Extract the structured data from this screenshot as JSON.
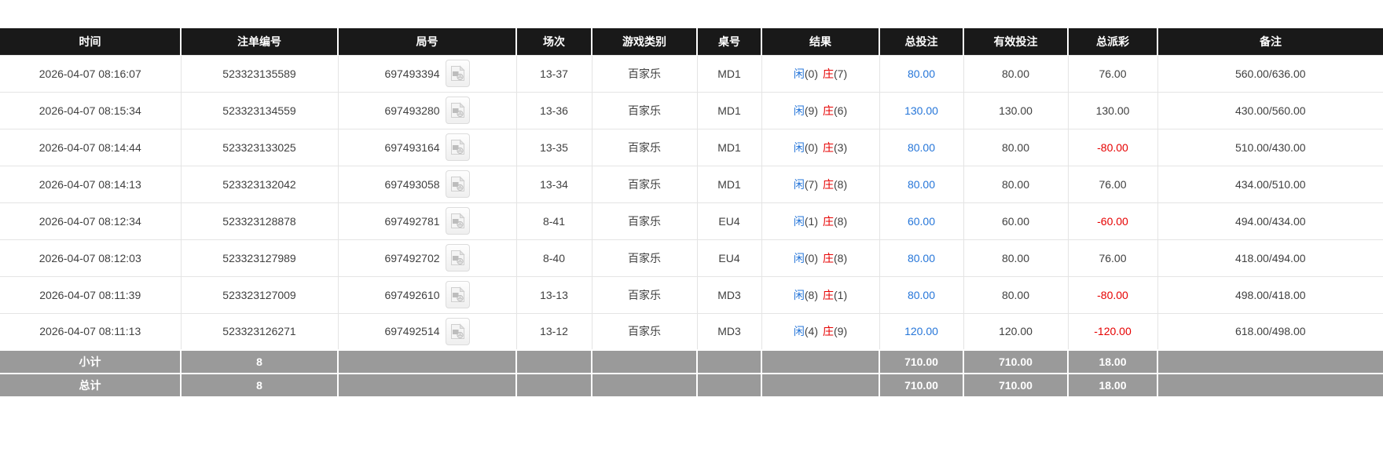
{
  "table": {
    "columns": [
      {
        "key": "time",
        "label": "时间"
      },
      {
        "key": "bet_id",
        "label": "注单编号"
      },
      {
        "key": "round",
        "label": "局号"
      },
      {
        "key": "session",
        "label": "场次"
      },
      {
        "key": "game",
        "label": "游戏类别"
      },
      {
        "key": "table_no",
        "label": "桌号"
      },
      {
        "key": "result",
        "label": "结果"
      },
      {
        "key": "total_bet",
        "label": "总投注"
      },
      {
        "key": "valid_bet",
        "label": "有效投注"
      },
      {
        "key": "payout",
        "label": "总派彩"
      },
      {
        "key": "remark",
        "label": "备注"
      }
    ],
    "result_labels": {
      "player": "闲",
      "banker": "庄"
    },
    "rows": [
      {
        "time": "2026-04-07 08:16:07",
        "bet_id": "523323135589",
        "round": "697493394",
        "session": "13-37",
        "game": "百家乐",
        "table_no": "MD1",
        "result": {
          "player": "0",
          "banker": "7"
        },
        "total_bet": "80.00",
        "valid_bet": "80.00",
        "payout": "76.00",
        "remark": "560.00/636.00"
      },
      {
        "time": "2026-04-07 08:15:34",
        "bet_id": "523323134559",
        "round": "697493280",
        "session": "13-36",
        "game": "百家乐",
        "table_no": "MD1",
        "result": {
          "player": "9",
          "banker": "6"
        },
        "total_bet": "130.00",
        "valid_bet": "130.00",
        "payout": "130.00",
        "remark": "430.00/560.00"
      },
      {
        "time": "2026-04-07 08:14:44",
        "bet_id": "523323133025",
        "round": "697493164",
        "session": "13-35",
        "game": "百家乐",
        "table_no": "MD1",
        "result": {
          "player": "0",
          "banker": "3"
        },
        "total_bet": "80.00",
        "valid_bet": "80.00",
        "payout": "-80.00",
        "remark": "510.00/430.00"
      },
      {
        "time": "2026-04-07 08:14:13",
        "bet_id": "523323132042",
        "round": "697493058",
        "session": "13-34",
        "game": "百家乐",
        "table_no": "MD1",
        "result": {
          "player": "7",
          "banker": "8"
        },
        "total_bet": "80.00",
        "valid_bet": "80.00",
        "payout": "76.00",
        "remark": "434.00/510.00"
      },
      {
        "time": "2026-04-07 08:12:34",
        "bet_id": "523323128878",
        "round": "697492781",
        "session": "8-41",
        "game": "百家乐",
        "table_no": "EU4",
        "result": {
          "player": "1",
          "banker": "8"
        },
        "total_bet": "60.00",
        "valid_bet": "60.00",
        "payout": "-60.00",
        "remark": "494.00/434.00"
      },
      {
        "time": "2026-04-07 08:12:03",
        "bet_id": "523323127989",
        "round": "697492702",
        "session": "8-40",
        "game": "百家乐",
        "table_no": "EU4",
        "result": {
          "player": "0",
          "banker": "8"
        },
        "total_bet": "80.00",
        "valid_bet": "80.00",
        "payout": "76.00",
        "remark": "418.00/494.00"
      },
      {
        "time": "2026-04-07 08:11:39",
        "bet_id": "523323127009",
        "round": "697492610",
        "session": "13-13",
        "game": "百家乐",
        "table_no": "MD3",
        "result": {
          "player": "8",
          "banker": "1"
        },
        "total_bet": "80.00",
        "valid_bet": "80.00",
        "payout": "-80.00",
        "remark": "498.00/418.00"
      },
      {
        "time": "2026-04-07 08:11:13",
        "bet_id": "523323126271",
        "round": "697492514",
        "session": "13-12",
        "game": "百家乐",
        "table_no": "MD3",
        "result": {
          "player": "4",
          "banker": "9"
        },
        "total_bet": "120.00",
        "valid_bet": "120.00",
        "payout": "-120.00",
        "remark": "618.00/498.00"
      }
    ],
    "footer": [
      {
        "label": "小计",
        "count": "8",
        "total_bet": "710.00",
        "valid_bet": "710.00",
        "payout": "18.00"
      },
      {
        "label": "总计",
        "count": "8",
        "total_bet": "710.00",
        "valid_bet": "710.00",
        "payout": "18.00"
      }
    ]
  },
  "icons": {
    "round_cell_icon": "video-replay-film-icon"
  },
  "colors": {
    "header_bg": "#191919",
    "header_text": "#ffffff",
    "footer_bg": "#9a9a9a",
    "player_blue": "#2676d9",
    "banker_red": "#e60000",
    "negative_red": "#e60000",
    "link_blue": "#2676d9",
    "body_text": "#404040",
    "grid_line": "#e4e4e4"
  }
}
